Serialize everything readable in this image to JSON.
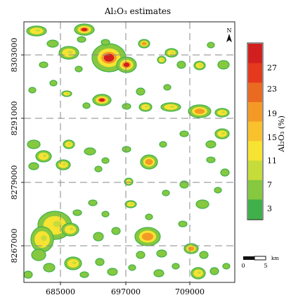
{
  "map": {
    "title": "Al₂O₃ estimates",
    "x_ticks": [
      "685000",
      "697000",
      "709000"
    ],
    "y_ticks": [
      "8303000",
      "8291000",
      "8279000",
      "8267000"
    ],
    "north_label": "N",
    "scale_bar": {
      "zero": "0",
      "end": "5",
      "unit": "km"
    }
  },
  "colorbar": {
    "title": "Al₂O₃ (%)",
    "labels": [
      "27",
      "23",
      "19",
      "15",
      "11",
      "7",
      "3"
    ],
    "colors": [
      "#d11f1f",
      "#e4391c",
      "#eb6a21",
      "#f39a26",
      "#f9c12e",
      "#f6e332",
      "#c6dc3a",
      "#86c83f",
      "#3fb04a"
    ]
  }
}
